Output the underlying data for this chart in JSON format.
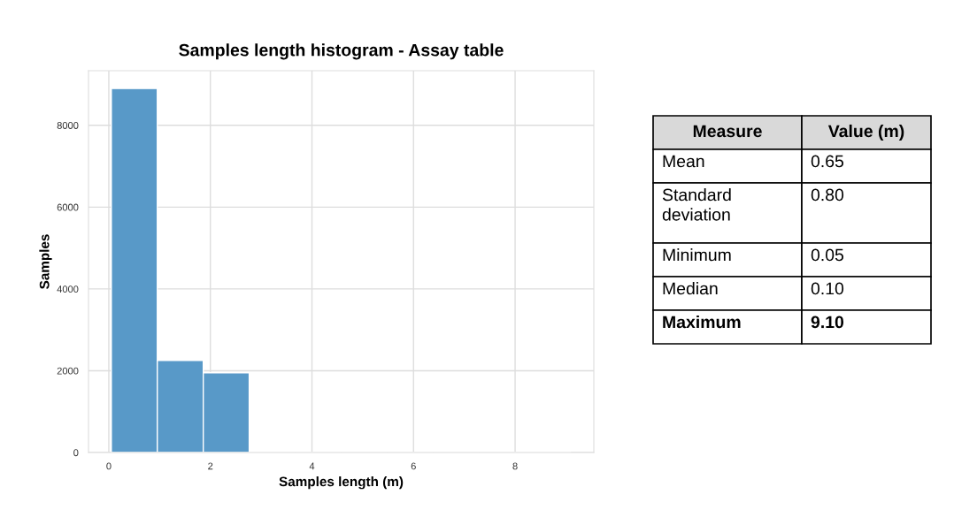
{
  "chart_data": [
    {
      "type": "histogram",
      "title": "Samples length histogram - Assay table",
      "xlabel": "Samples length (m)",
      "ylabel": "Samples",
      "bins": [
        0.05,
        0.955,
        1.86,
        2.765,
        3.67,
        4.575,
        5.48,
        6.385,
        7.29,
        8.195,
        9.1
      ],
      "values": [
        8900,
        2250,
        1950,
        0,
        0,
        0,
        0,
        0,
        0,
        0
      ],
      "color": "#5899c8",
      "xlim": [
        -0.4,
        9.55
      ],
      "xticks": [
        0,
        2,
        4,
        6,
        8
      ],
      "ylim": [
        0,
        9335
      ],
      "yticks": [
        0,
        2000,
        4000,
        6000,
        8000
      ],
      "grid": true
    },
    {
      "type": "other",
      "categories": [
        "Measure",
        "Value (m)"
      ],
      "annotations": [
        "Mean",
        "0.65",
        "Standard deviation",
        "0.80",
        "Minimum",
        "0.05",
        "Median",
        "0.10",
        "Maximum",
        "9.10"
      ]
    }
  ]
}
